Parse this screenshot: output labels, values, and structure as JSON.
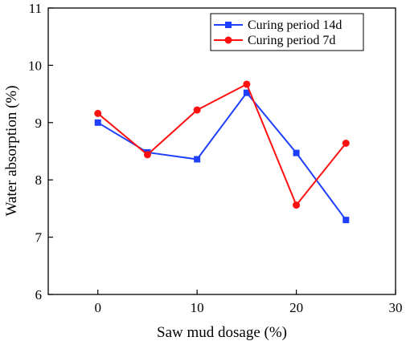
{
  "chart_data": {
    "type": "line",
    "xlabel": "Saw mud dosage (%)",
    "ylabel": "Water absorption (%)",
    "xlim": [
      -5,
      30
    ],
    "ylim": [
      6,
      11
    ],
    "xticks": [
      0,
      10,
      20,
      30
    ],
    "yticks": [
      6,
      7,
      8,
      9,
      10,
      11
    ],
    "grid": false,
    "legend_position": "top-right",
    "series": [
      {
        "name": "Curing period 14d",
        "color": "#1f3fff",
        "marker": "square",
        "x": [
          0,
          5,
          10,
          15,
          20,
          25
        ],
        "y": [
          9.0,
          8.48,
          8.36,
          9.52,
          8.47,
          7.3
        ]
      },
      {
        "name": "Curing period 7d",
        "color": "#ff1010",
        "marker": "circle",
        "x": [
          0,
          5,
          10,
          15,
          20,
          25
        ],
        "y": [
          9.16,
          8.44,
          9.22,
          9.67,
          7.56,
          8.64
        ]
      }
    ]
  }
}
